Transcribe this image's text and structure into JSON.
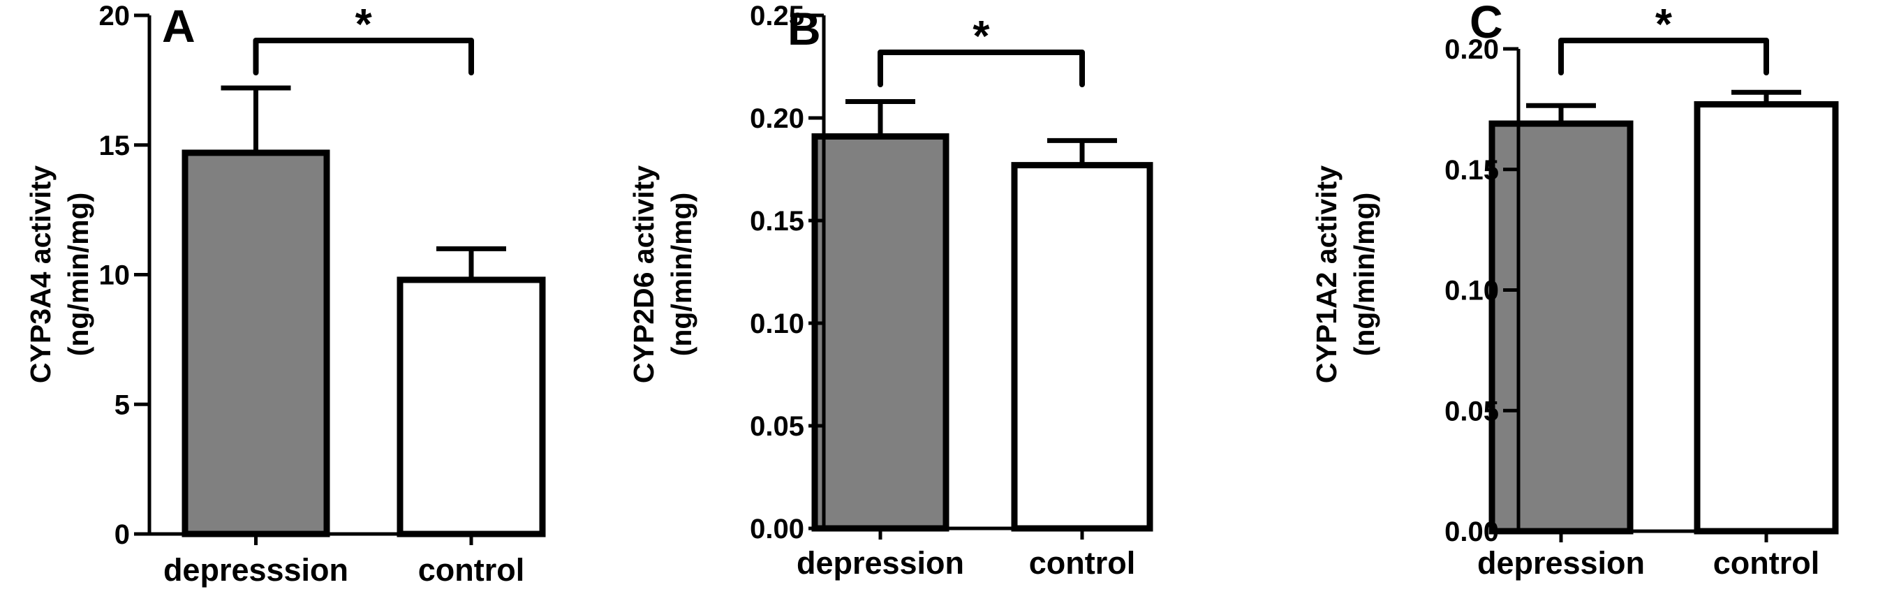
{
  "colors": {
    "depression_bar": "#808080",
    "control_bar": "#ffffff",
    "stroke": "#000000"
  },
  "chart_data": [
    {
      "type": "bar",
      "panel_label": "A",
      "categories": [
        "depresssion",
        "control"
      ],
      "values": [
        14.7,
        9.8
      ],
      "errors": [
        2.5,
        1.2
      ],
      "ylabel": "CYP3A4 activity",
      "ylabel_unit": "(ng/min/mg)",
      "ylim": [
        0,
        20
      ],
      "yticks": [
        0,
        5,
        10,
        15,
        20
      ],
      "ytick_labels": [
        "0",
        "5",
        "10",
        "15",
        "20"
      ],
      "significance": "*",
      "grid": false,
      "legend": "none"
    },
    {
      "type": "bar",
      "panel_label": "B",
      "categories": [
        "depression",
        "control"
      ],
      "values": [
        0.191,
        0.177
      ],
      "errors": [
        0.017,
        0.012
      ],
      "ylabel": "CYP2D6 activity",
      "ylabel_unit": "(ng/min/mg)",
      "ylim": [
        0,
        0.25
      ],
      "yticks": [
        0,
        0.05,
        0.1,
        0.15,
        0.2,
        0.25
      ],
      "ytick_labels": [
        "0.00",
        "0.05",
        "0.10",
        "0.15",
        "0.20",
        "0.25"
      ],
      "significance": "*",
      "grid": false,
      "legend": "none"
    },
    {
      "type": "bar",
      "panel_label": "C",
      "categories": [
        "depression",
        "control"
      ],
      "values": [
        0.169,
        0.177
      ],
      "errors": [
        0.0075,
        0.005
      ],
      "ylabel": "CYP1A2 activity",
      "ylabel_unit": "(ng/min/mg)",
      "ylim": [
        0,
        0.2
      ],
      "yticks": [
        0,
        0.05,
        0.1,
        0.15,
        0.2
      ],
      "ytick_labels": [
        "0.00",
        "0.05",
        "0.10",
        "0.15",
        "0.20"
      ],
      "significance": "*",
      "grid": false,
      "legend": "none"
    }
  ]
}
